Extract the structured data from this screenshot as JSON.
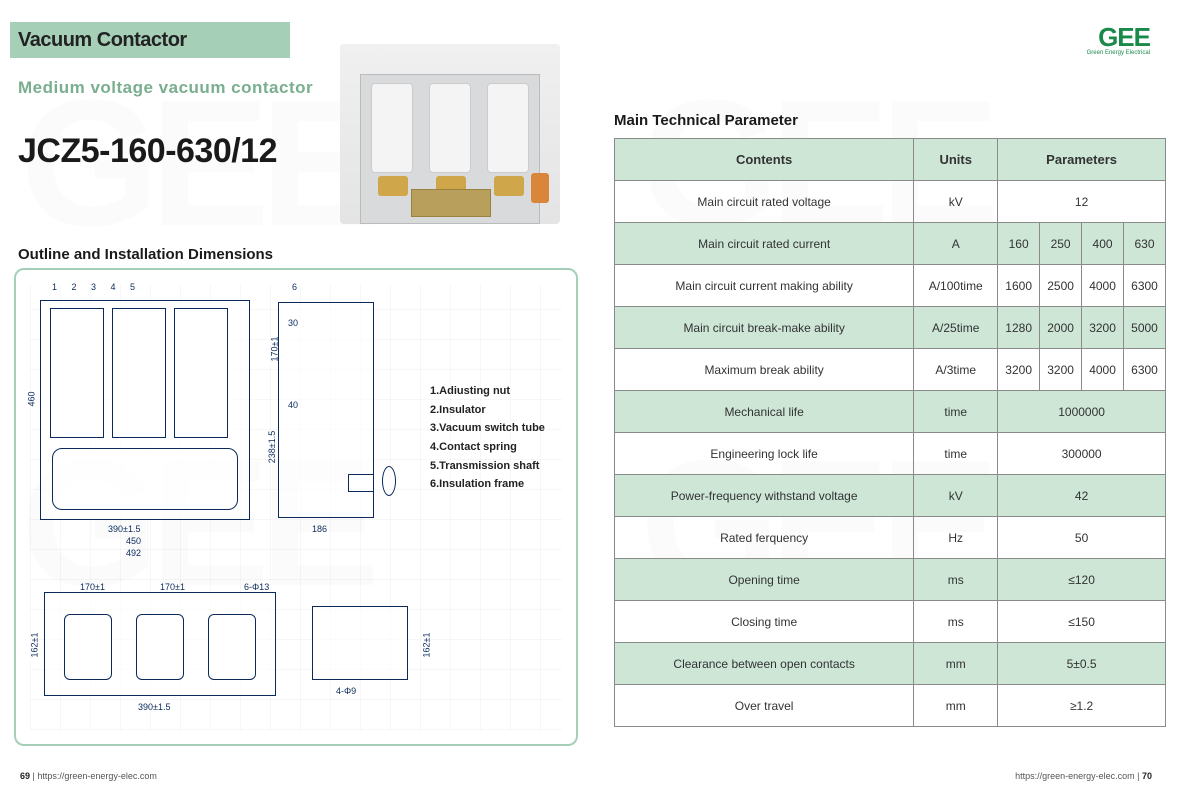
{
  "brand": {
    "logo_text": "GEE",
    "logo_sub": "Green Energy Electrical",
    "logo_color": "#1a8a4a"
  },
  "header": {
    "band_label": "Vacuum Contactor",
    "subtitle": "Medium voltage vacuum contactor",
    "model": "JCZ5-160-630/12"
  },
  "sections": {
    "outline": "Outline and Installation Dimensions",
    "params": "Main Technical Parameter"
  },
  "legend": {
    "items": [
      "1.Adiusting nut",
      "2.Insulator",
      "3.Vacuum switch tube",
      "4.Contact spring",
      "5.Transmission shaft",
      "6.Insulation frame"
    ]
  },
  "diagram_labels": {
    "d390": "390±1.5",
    "d450": "450",
    "d492": "492",
    "d186": "186",
    "d460": "460",
    "d238": "238±1.5",
    "d30": "30",
    "d40": "40",
    "d170a": "170±1",
    "d170b": "170±1",
    "d170c": "170±1",
    "d162a": "162±1",
    "d162b": "162±1",
    "d6phi13": "6-Φ13",
    "d4phi9": "4-Φ9",
    "callouts": "1   2    3       4     5",
    "callout6": "6"
  },
  "table": {
    "headers": {
      "contents": "Contents",
      "units": "Units",
      "parameters": "Parameters"
    },
    "rows": [
      {
        "alt": false,
        "label": "Main circuit rated voltage",
        "unit": "kV",
        "span": true,
        "value": "12"
      },
      {
        "alt": true,
        "label": "Main circuit rated current",
        "unit": "A",
        "span": false,
        "values": [
          "160",
          "250",
          "400",
          "630"
        ]
      },
      {
        "alt": false,
        "label": "Main circuit current making ability",
        "unit": "A/100time",
        "span": false,
        "values": [
          "1600",
          "2500",
          "4000",
          "6300"
        ]
      },
      {
        "alt": true,
        "label": "Main circuit break-make ability",
        "unit": "A/25time",
        "span": false,
        "values": [
          "1280",
          "2000",
          "3200",
          "5000"
        ]
      },
      {
        "alt": false,
        "label": "Maximum break ability",
        "unit": "A/3time",
        "span": false,
        "values": [
          "3200",
          "3200",
          "4000",
          "6300"
        ]
      },
      {
        "alt": true,
        "label": "Mechanical life",
        "unit": "time",
        "span": true,
        "value": "1000000"
      },
      {
        "alt": false,
        "label": "Engineering lock life",
        "unit": "time",
        "span": true,
        "value": "300000"
      },
      {
        "alt": true,
        "label": "Power-frequency withstand voltage",
        "unit": "kV",
        "span": true,
        "value": "42"
      },
      {
        "alt": false,
        "label": "Rated ferquency",
        "unit": "Hz",
        "span": true,
        "value": "50"
      },
      {
        "alt": true,
        "label": "Opening time",
        "unit": "ms",
        "span": true,
        "value": "≤120"
      },
      {
        "alt": false,
        "label": "Closing time",
        "unit": "ms",
        "span": true,
        "value": "≤150"
      },
      {
        "alt": true,
        "label": "Clearance between open contacts",
        "unit": "mm",
        "span": true,
        "value": "5±0.5"
      },
      {
        "alt": false,
        "label": "Over travel",
        "unit": "mm",
        "span": true,
        "value": "≥1.2"
      }
    ]
  },
  "footer": {
    "url": "https://green-energy-elec.com",
    "page_left": "69",
    "page_right": "70"
  },
  "colors": {
    "accent": "#a6cfb7",
    "table_alt": "#cde6d6",
    "text_green": "#7aae8f",
    "blueprint": "#0b2a5b"
  }
}
